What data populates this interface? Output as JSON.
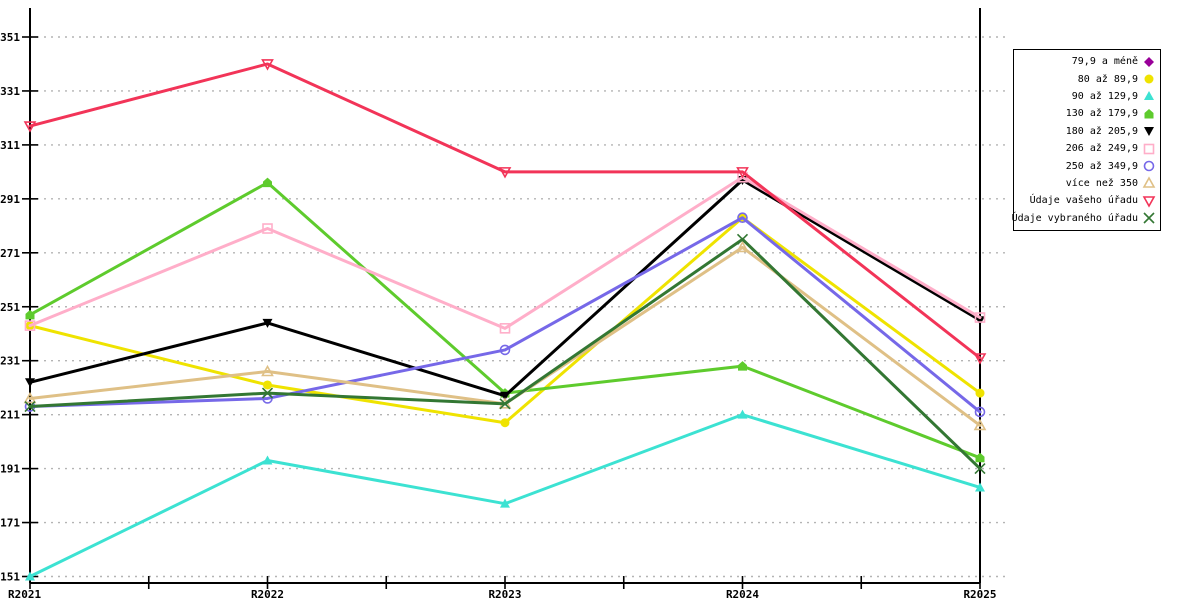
{
  "chart_data": {
    "type": "line",
    "title": "",
    "categories": [
      "R2021",
      "R2022",
      "R2023",
      "R2024",
      "R2025"
    ],
    "y_ticks": [
      151,
      171,
      191,
      211,
      231,
      251,
      271,
      291,
      311,
      331,
      351
    ],
    "ylim": [
      151,
      351
    ],
    "grid": "dotted-horizontal",
    "legend_position": "top-right-outside",
    "series": [
      {
        "name": "79,9 a méně",
        "color": "#990099",
        "marker": "diamond-filled",
        "values": null
      },
      {
        "name": "80 až 89,9",
        "color": "#efe300",
        "marker": "circle-filled",
        "values": [
          244,
          222,
          208,
          284,
          219
        ]
      },
      {
        "name": "90 až 129,9",
        "color": "#3ce2d2",
        "marker": "triangle-filled",
        "values": [
          151,
          194,
          178,
          211,
          184
        ]
      },
      {
        "name": "130 až 179,9",
        "color": "#5ecb2d",
        "marker": "pentagon-filled",
        "values": [
          248,
          297,
          219,
          229,
          195
        ]
      },
      {
        "name": "180 až 205,9",
        "color": "#000000",
        "marker": "inv-triangle-filled",
        "values": [
          223,
          245,
          218,
          298,
          246
        ]
      },
      {
        "name": "206 až 249,9",
        "color": "#ffaec9",
        "marker": "square-open",
        "values": [
          244,
          280,
          243,
          299,
          247
        ]
      },
      {
        "name": "250 až 349,9",
        "color": "#7668e8",
        "marker": "circle-open",
        "values": [
          214,
          217,
          235,
          284,
          212
        ]
      },
      {
        "name": "více než 350",
        "color": "#dfc086",
        "marker": "triangle-open",
        "values": [
          217,
          227,
          215,
          273,
          207
        ]
      },
      {
        "name": "Údaje vašeho úřadu",
        "color": "#f23458",
        "marker": "inv-triangle-open",
        "values": [
          318,
          341,
          301,
          301,
          232
        ]
      },
      {
        "name": "Údaje vybraného úřadu",
        "color": "#337733",
        "marker": "x",
        "values": [
          214,
          219,
          215,
          276,
          191
        ]
      }
    ]
  }
}
